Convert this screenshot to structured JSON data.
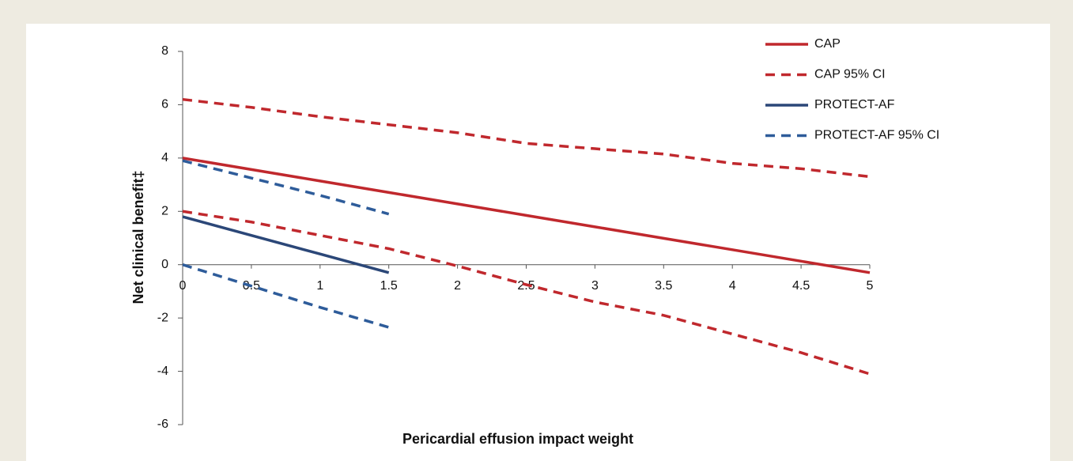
{
  "chart_data": {
    "type": "line",
    "xlabel": "Pericardial effusion impact weight",
    "ylabel": "Net clinical benefit‡",
    "x": [
      0,
      0.5,
      1,
      1.5,
      2,
      2.5,
      3,
      3.5,
      4,
      4.5,
      5
    ],
    "xlim": [
      0,
      5
    ],
    "xticks": [
      0,
      0.5,
      1,
      1.5,
      2,
      2.5,
      3,
      3.5,
      4,
      4.5,
      5
    ],
    "ylim": [
      -6,
      8
    ],
    "yticks": [
      -6,
      -4,
      -2,
      0,
      2,
      4,
      6,
      8
    ],
    "legend": "top-right",
    "series": [
      {
        "name": "CAP",
        "color": "#c0282d",
        "dashed": false,
        "values": [
          4,
          3.57,
          3.14,
          2.71,
          2.28,
          1.85,
          1.42,
          0.99,
          0.56,
          0.13,
          -0.3
        ]
      },
      {
        "name": "CAP 95% CI",
        "color": "#c0282d",
        "dashed": true,
        "values": [
          6.2,
          5.9,
          5.55,
          5.25,
          4.95,
          4.55,
          4.35,
          4.15,
          3.8,
          3.6,
          3.3
        ]
      },
      {
        "name": "PROTECT-AF",
        "color": "#2b4778",
        "dashed": false,
        "values": [
          1.8,
          1.1,
          0.4,
          -0.3,
          null,
          null,
          null,
          null,
          null,
          null,
          null
        ]
      },
      {
        "name": "PROTECT-AF 95% CI",
        "color": "#2e5c9a",
        "dashed": true,
        "values": [
          3.9,
          3.25,
          2.6,
          1.9,
          null,
          null,
          null,
          null,
          null,
          null,
          null
        ]
      },
      {
        "name": null,
        "color": "#c0282d",
        "dashed": true,
        "values": [
          2.0,
          1.6,
          1.1,
          0.6,
          -0.05,
          -0.75,
          -1.4,
          -1.9,
          -2.6,
          -3.3,
          -4.1
        ]
      },
      {
        "name": null,
        "color": "#2e5c9a",
        "dashed": true,
        "values": [
          0,
          -0.8,
          -1.6,
          -2.35,
          null,
          null,
          null,
          null,
          null,
          null,
          null
        ]
      }
    ]
  }
}
